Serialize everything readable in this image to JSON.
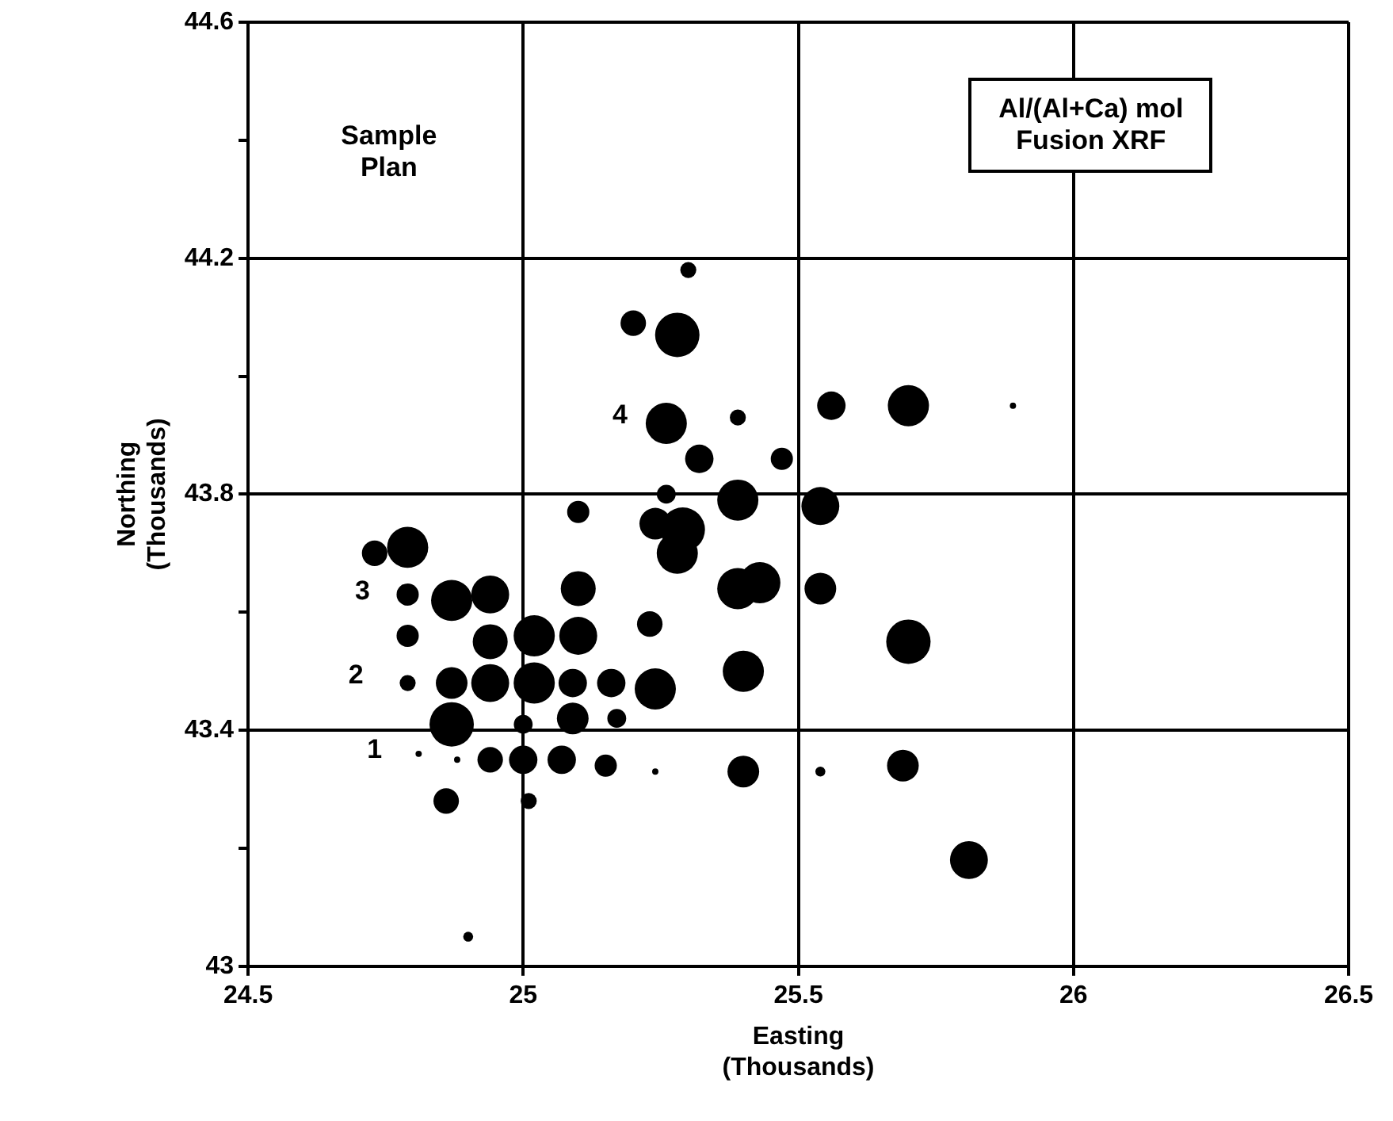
{
  "chart_data": {
    "type": "bubble",
    "title": "Al/(Al+Ca) mol\nFusion XRF",
    "xlabel": "Easting\n(Thousands)",
    "ylabel": "Northing\n(Thousands)",
    "series": [
      {
        "color": "#000000",
        "x": [
          25.1,
          24.73,
          24.79,
          25.3,
          25.2,
          25.28,
          25.26,
          25.39,
          25.32,
          25.47,
          25.26,
          25.39,
          25.56,
          25.7,
          25.89,
          25.54,
          25.24,
          25.29,
          25.28,
          25.1,
          25.39,
          25.43,
          25.54,
          24.79,
          24.87,
          24.94,
          24.79,
          24.94,
          25.02,
          25.1,
          25.23,
          25.7,
          24.79,
          24.87,
          24.94,
          25.02,
          25.09,
          25.16,
          25.24,
          25.4,
          24.87,
          25.0,
          25.09,
          25.17,
          24.81,
          24.88,
          24.94,
          25.0,
          25.07,
          25.15,
          25.24,
          25.4,
          25.54,
          25.69,
          25.81,
          24.86,
          25.01,
          24.9
        ],
        "values": [
          43.77,
          43.7,
          43.71,
          44.18,
          44.09,
          44.07,
          43.92,
          43.93,
          43.86,
          43.86,
          43.8,
          43.79,
          43.95,
          43.95,
          43.95,
          43.78,
          43.75,
          43.74,
          43.7,
          43.64,
          43.64,
          43.65,
          43.64,
          43.63,
          43.62,
          43.63,
          43.56,
          43.55,
          43.56,
          43.56,
          43.58,
          43.55,
          43.48,
          43.48,
          43.48,
          43.48,
          43.48,
          43.48,
          43.47,
          43.5,
          43.41,
          43.41,
          43.42,
          43.42,
          43.36,
          43.35,
          43.35,
          43.35,
          43.35,
          43.34,
          43.33,
          43.33,
          43.33,
          43.34,
          43.18,
          43.28,
          43.28,
          43.05
        ],
        "sizes": [
          0.25,
          0.33,
          0.86,
          0.13,
          0.33,
          1,
          0.86,
          0.13,
          0.41,
          0.25,
          0.18,
          0.86,
          0.41,
          0.86,
          0.02,
          0.73,
          0.51,
          1,
          0.86,
          0.62,
          0.86,
          0.86,
          0.51,
          0.25,
          0.86,
          0.73,
          0.25,
          0.62,
          0.86,
          0.73,
          0.33,
          1,
          0.13,
          0.51,
          0.73,
          0.86,
          0.41,
          0.41,
          0.86,
          0.86,
          1,
          0.18,
          0.51,
          0.18,
          0.02,
          0.02,
          0.33,
          0.41,
          0.41,
          0.25,
          0.02,
          0.51,
          0.05,
          0.51,
          0.73,
          0.33,
          0.13,
          0.05
        ]
      }
    ],
    "xlim": [
      24.5,
      26.5
    ],
    "xticks": [
      24.5,
      25,
      25.5,
      26,
      26.5
    ],
    "ylim": [
      43,
      44.6
    ],
    "yticks": [
      43,
      {
        "value": 43.2,
        "label": null
      },
      43.4,
      {
        "value": 43.6,
        "label": null
      },
      43.8,
      {
        "value": 44,
        "label": null
      },
      44.2,
      {
        "value": 44.4,
        "label": null
      },
      44.6
    ],
    "grid": true,
    "annotations": [
      "Sample Plan",
      "1",
      "2",
      "3",
      "4"
    ]
  }
}
